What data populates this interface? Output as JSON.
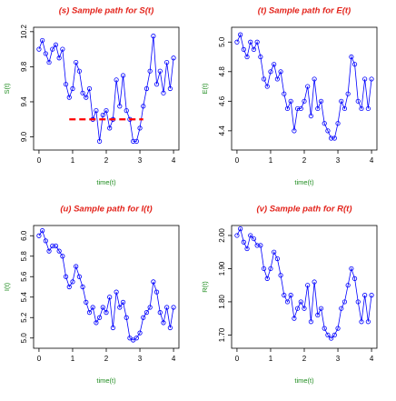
{
  "chart_data": [
    {
      "type": "line",
      "title": "(s) Sample path for S(t)",
      "xlabel": "time(t)",
      "ylabel": "S(t)",
      "color": "#0000ff",
      "marker": "circle",
      "x": [
        0,
        0.1,
        0.2,
        0.3,
        0.4,
        0.5,
        0.6,
        0.7,
        0.8,
        0.9,
        1,
        1.1,
        1.2,
        1.3,
        1.4,
        1.5,
        1.6,
        1.7,
        1.8,
        1.9,
        2,
        2.1,
        2.2,
        2.3,
        2.4,
        2.5,
        2.6,
        2.7,
        2.8,
        2.9,
        3,
        3.1,
        3.2,
        3.3,
        3.4,
        3.5,
        3.6,
        3.7,
        3.8,
        3.9,
        4
      ],
      "values": [
        10.0,
        10.1,
        9.95,
        9.85,
        10.0,
        10.05,
        9.9,
        10.0,
        9.6,
        9.45,
        9.55,
        9.85,
        9.75,
        9.5,
        9.45,
        9.55,
        9.2,
        9.3,
        8.95,
        9.25,
        9.3,
        9.1,
        9.2,
        9.65,
        9.35,
        9.7,
        9.3,
        9.2,
        8.95,
        8.95,
        9.1,
        9.35,
        9.55,
        9.75,
        10.15,
        9.6,
        9.75,
        9.5,
        9.85,
        9.55,
        9.9
      ],
      "reference_line": {
        "value": 9.2,
        "x": [
          0.9,
          3.1
        ],
        "color": "#ff0000",
        "dashed": true
      },
      "xlim": [
        -0.16,
        4.16
      ],
      "ylim": [
        8.85,
        10.25
      ],
      "xticks": [
        0,
        1,
        2,
        3,
        4
      ],
      "yticks": [
        {
          "value": 9,
          "label": "9.0"
        },
        9.4,
        9.8,
        10.2
      ]
    },
    {
      "type": "line",
      "title": "(t) Sample path for E(t)",
      "xlabel": "time(t)",
      "ylabel": "E(t)",
      "color": "#0000ff",
      "marker": "circle",
      "x": [
        0,
        0.1,
        0.2,
        0.3,
        0.4,
        0.5,
        0.6,
        0.7,
        0.8,
        0.9,
        1,
        1.1,
        1.2,
        1.3,
        1.4,
        1.5,
        1.6,
        1.7,
        1.8,
        1.9,
        2,
        2.1,
        2.2,
        2.3,
        2.4,
        2.5,
        2.6,
        2.7,
        2.8,
        2.9,
        3,
        3.1,
        3.2,
        3.3,
        3.4,
        3.5,
        3.6,
        3.7,
        3.8,
        3.9,
        4
      ],
      "values": [
        5.0,
        5.05,
        4.95,
        4.9,
        5.0,
        4.95,
        5.0,
        4.9,
        4.75,
        4.7,
        4.8,
        4.85,
        4.75,
        4.8,
        4.65,
        4.55,
        4.6,
        4.4,
        4.55,
        4.55,
        4.6,
        4.7,
        4.5,
        4.75,
        4.55,
        4.6,
        4.45,
        4.4,
        4.35,
        4.35,
        4.45,
        4.6,
        4.55,
        4.65,
        4.9,
        4.85,
        4.6,
        4.55,
        4.75,
        4.55,
        4.75
      ],
      "xlim": [
        -0.16,
        4.16
      ],
      "ylim": [
        4.27,
        5.1
      ],
      "xticks": [
        0,
        1,
        2,
        3,
        4
      ],
      "yticks": [
        4.4,
        4.6,
        4.8,
        {
          "value": 5,
          "label": "5.0"
        }
      ]
    },
    {
      "type": "line",
      "title": "(u) Sample path for I(t)",
      "xlabel": "time(t)",
      "ylabel": "I(t)",
      "color": "#0000ff",
      "marker": "circle",
      "x": [
        0,
        0.1,
        0.2,
        0.3,
        0.4,
        0.5,
        0.6,
        0.7,
        0.8,
        0.9,
        1,
        1.1,
        1.2,
        1.3,
        1.4,
        1.5,
        1.6,
        1.7,
        1.8,
        1.9,
        2,
        2.1,
        2.2,
        2.3,
        2.4,
        2.5,
        2.6,
        2.7,
        2.8,
        2.9,
        3,
        3.1,
        3.2,
        3.3,
        3.4,
        3.5,
        3.6,
        3.7,
        3.8,
        3.9,
        4
      ],
      "values": [
        6.0,
        6.05,
        5.95,
        5.85,
        5.9,
        5.9,
        5.85,
        5.8,
        5.6,
        5.5,
        5.55,
        5.7,
        5.6,
        5.5,
        5.35,
        5.25,
        5.3,
        5.15,
        5.2,
        5.3,
        5.25,
        5.4,
        5.1,
        5.45,
        5.3,
        5.35,
        5.2,
        5.0,
        4.98,
        5.0,
        5.05,
        5.2,
        5.25,
        5.3,
        5.55,
        5.45,
        5.25,
        5.15,
        5.3,
        5.1,
        5.3
      ],
      "xlim": [
        -0.16,
        4.16
      ],
      "ylim": [
        4.9,
        6.1
      ],
      "xticks": [
        0,
        1,
        2,
        3,
        4
      ],
      "yticks": [
        {
          "value": 5,
          "label": "5.0"
        },
        5.2,
        5.4,
        5.6,
        5.8,
        {
          "value": 6,
          "label": "6.0"
        }
      ]
    },
    {
      "type": "line",
      "title": "(v) Sample path for R(t)",
      "xlabel": "time(t)",
      "ylabel": "R(t)",
      "color": "#0000ff",
      "marker": "circle",
      "x": [
        0,
        0.1,
        0.2,
        0.3,
        0.4,
        0.5,
        0.6,
        0.7,
        0.8,
        0.9,
        1,
        1.1,
        1.2,
        1.3,
        1.4,
        1.5,
        1.6,
        1.7,
        1.8,
        1.9,
        2,
        2.1,
        2.2,
        2.3,
        2.4,
        2.5,
        2.6,
        2.7,
        2.8,
        2.9,
        3,
        3.1,
        3.2,
        3.3,
        3.4,
        3.5,
        3.6,
        3.7,
        3.8,
        3.9,
        4
      ],
      "values": [
        2.0,
        2.02,
        1.98,
        1.96,
        2.0,
        1.99,
        1.97,
        1.97,
        1.9,
        1.87,
        1.9,
        1.95,
        1.93,
        1.88,
        1.82,
        1.8,
        1.82,
        1.75,
        1.78,
        1.8,
        1.78,
        1.85,
        1.74,
        1.86,
        1.76,
        1.78,
        1.72,
        1.7,
        1.69,
        1.7,
        1.72,
        1.78,
        1.8,
        1.85,
        1.9,
        1.87,
        1.8,
        1.74,
        1.82,
        1.74,
        1.82
      ],
      "xlim": [
        -0.16,
        4.16
      ],
      "ylim": [
        1.66,
        2.03
      ],
      "xticks": [
        0,
        1,
        2,
        3,
        4
      ],
      "yticks": [
        {
          "value": 1.7,
          "label": "1.70"
        },
        {
          "value": 1.8,
          "label": "1.80"
        },
        {
          "value": 1.9,
          "label": "1.90"
        },
        {
          "value": 2,
          "label": "2.00"
        }
      ]
    }
  ]
}
